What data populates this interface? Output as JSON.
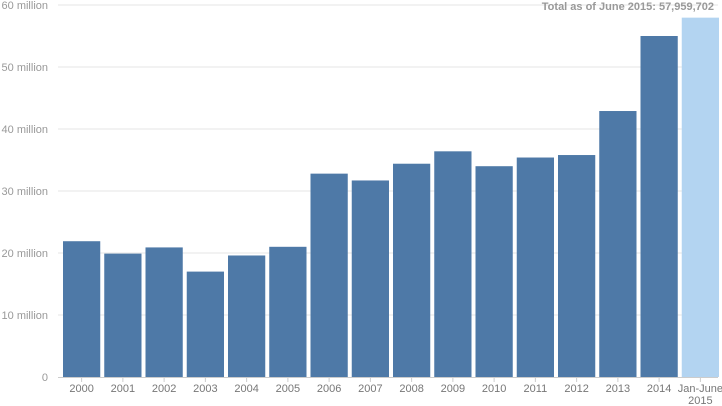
{
  "chart_data": {
    "type": "bar",
    "categories": [
      "2000",
      "2001",
      "2002",
      "2003",
      "2004",
      "2005",
      "2006",
      "2007",
      "2008",
      "2009",
      "2010",
      "2011",
      "2012",
      "2013",
      "2014",
      "Jan-June 2015"
    ],
    "category_lines": [
      [
        "2000"
      ],
      [
        "2001"
      ],
      [
        "2002"
      ],
      [
        "2003"
      ],
      [
        "2004"
      ],
      [
        "2005"
      ],
      [
        "2006"
      ],
      [
        "2007"
      ],
      [
        "2008"
      ],
      [
        "2009"
      ],
      [
        "2010"
      ],
      [
        "2011"
      ],
      [
        "2012"
      ],
      [
        "2013"
      ],
      [
        "2014"
      ],
      [
        "Jan-June",
        "2015"
      ]
    ],
    "values": [
      21900000,
      19900000,
      20900000,
      17000000,
      19600000,
      21000000,
      32800000,
      31700000,
      34400000,
      36400000,
      34000000,
      35400000,
      35800000,
      42900000,
      55000000,
      57959702
    ],
    "highlight_index": 15,
    "colors": {
      "bar": "#4e79a7",
      "highlight": "#b3d4f1",
      "grid": "#e6e6e6",
      "axis": "#cccccc"
    },
    "ylim": [
      0,
      60000000
    ],
    "yticks": [
      0,
      10000000,
      20000000,
      30000000,
      40000000,
      50000000,
      60000000
    ],
    "ytick_labels": [
      "0",
      "10 million",
      "20 million",
      "30 million",
      "40 million",
      "50 million",
      "60 million"
    ],
    "grid": true,
    "title": "",
    "xlabel": "",
    "ylabel": "",
    "annotation": "Total as of June 2015: 57,959,702"
  }
}
